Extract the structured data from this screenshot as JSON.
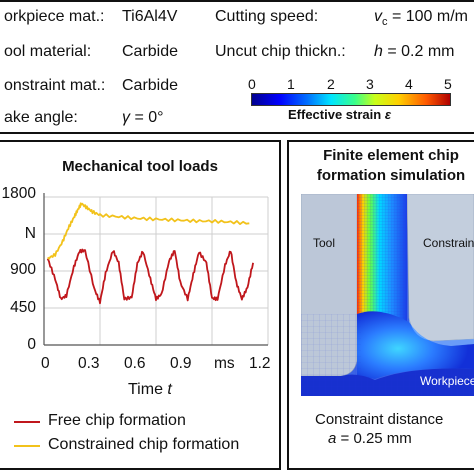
{
  "params": {
    "workpiece_mat_label": "orkpiece mat.:",
    "workpiece_mat_value": "Ti6Al4V",
    "tool_mat_label": "ool material:",
    "tool_mat_value": "Carbide",
    "constraint_mat_label": "onstraint mat.:",
    "constraint_mat_value": "Carbide",
    "rake_angle_label": "ake angle:",
    "rake_angle_symbol": "γ",
    "rake_angle_value": "= 0°",
    "cutting_speed_label": "Cutting speed:",
    "cutting_speed_symbol": "v",
    "cutting_speed_sub": "c",
    "cutting_speed_value": "= 100 m/m",
    "chip_thick_label": "Uncut chip thickn.:",
    "chip_thick_symbol": "h",
    "chip_thick_value": "= 0.2 mm"
  },
  "colorbar": {
    "ticks": [
      "0",
      "1",
      "2",
      "3",
      "4",
      "5"
    ],
    "label": "Effective strain",
    "symbol": "ε"
  },
  "left_panel": {
    "title": "Mechanical tool loads",
    "y_unit": "N",
    "x_unit": "ms",
    "xlabel": "Time",
    "xlabel_symbol": "t",
    "legend": [
      {
        "label": "Free chip formation",
        "color": "#c0171c"
      },
      {
        "label": "Constrained chip formation",
        "color": "#f2c21b"
      }
    ]
  },
  "right_panel": {
    "title_line1": "Finite element chip",
    "title_line2": "formation simulation",
    "tool_label": "Tool",
    "constraint_label": "Constrain",
    "workpiece_label": "Workpiece",
    "caption_line1": "Constraint distance",
    "caption_symbol": "a",
    "caption_value": "= 0.25 mm"
  },
  "chart_data": {
    "type": "line",
    "title": "Mechanical tool loads",
    "xlabel": "Time t",
    "ylabel": "N",
    "x_ticks": [
      "0",
      "0.3",
      "0.6",
      "0.9",
      "ms",
      "1.2"
    ],
    "y_ticks": [
      "1800",
      "N",
      "900",
      "450",
      "0"
    ],
    "xlim": [
      0,
      1.2
    ],
    "ylim": [
      0,
      1800
    ],
    "series": [
      {
        "name": "Free chip formation",
        "color": "#c0171c",
        "x": [
          0.02,
          0.06,
          0.09,
          0.12,
          0.16,
          0.19,
          0.22,
          0.27,
          0.3,
          0.33,
          0.37,
          0.4,
          0.43,
          0.47,
          0.5,
          0.53,
          0.57,
          0.6,
          0.63,
          0.67,
          0.7,
          0.73,
          0.77,
          0.8,
          0.83,
          0.87,
          0.9,
          0.93,
          0.97,
          1.0,
          1.03,
          1.06,
          1.09,
          1.12
        ],
        "y": [
          1050,
          800,
          560,
          600,
          950,
          1140,
          1150,
          680,
          520,
          870,
          1150,
          1000,
          560,
          580,
          990,
          1140,
          800,
          560,
          620,
          1020,
          1150,
          760,
          560,
          860,
          1130,
          1000,
          570,
          560,
          970,
          1150,
          760,
          560,
          700,
          1000
        ]
      },
      {
        "name": "Constrained chip formation",
        "color": "#f2c21b",
        "x": [
          0.02,
          0.06,
          0.1,
          0.13,
          0.16,
          0.18,
          0.2,
          0.23,
          0.26,
          0.3,
          0.4,
          0.5,
          0.6,
          0.7,
          0.8,
          0.9,
          1.0,
          1.1
        ],
        "y": [
          1050,
          1100,
          1260,
          1420,
          1550,
          1640,
          1720,
          1670,
          1620,
          1580,
          1560,
          1540,
          1530,
          1520,
          1510,
          1505,
          1495,
          1480
        ]
      }
    ]
  }
}
